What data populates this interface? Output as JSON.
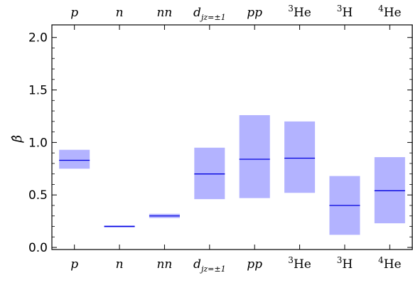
{
  "chart_data": {
    "type": "bar",
    "categories": [
      "p",
      "n",
      "nn",
      "d_jz=±1",
      "pp",
      "³He",
      "³H",
      "⁴He"
    ],
    "category_display": [
      {
        "base": "p",
        "sup": "",
        "sub": "",
        "italic": true
      },
      {
        "base": "n",
        "sup": "",
        "sub": "",
        "italic": true
      },
      {
        "base": "nn",
        "sup": "",
        "sub": "",
        "italic": true
      },
      {
        "base": "d",
        "sup": "",
        "sub": "jz=±1",
        "italic": true
      },
      {
        "base": "pp",
        "sup": "",
        "sub": "",
        "italic": true
      },
      {
        "base": "He",
        "sup": "3",
        "sub": "",
        "italic": false
      },
      {
        "base": "H",
        "sup": "3",
        "sub": "",
        "italic": false
      },
      {
        "base": "He",
        "sup": "4",
        "sub": "",
        "italic": false
      }
    ],
    "series": [
      {
        "central": [
          0.83,
          0.2,
          0.3,
          0.7,
          0.84,
          0.85,
          0.4,
          0.54
        ],
        "low": [
          0.75,
          0.19,
          0.28,
          0.46,
          0.47,
          0.52,
          0.12,
          0.23
        ],
        "high": [
          0.93,
          0.21,
          0.32,
          0.95,
          1.26,
          1.2,
          0.68,
          0.86
        ]
      }
    ],
    "ylabel": "β̂",
    "ylim": [
      -0.02,
      2.12
    ],
    "yticks": [
      0.0,
      0.5,
      1.0,
      1.5,
      2.0
    ],
    "ytick_labels": [
      "0.0",
      "0.5",
      "1.0",
      "1.5",
      "2.0"
    ],
    "band_color": "#b3b3ff",
    "line_color": "#0000dd",
    "grid": false,
    "top_axis_labels": true
  }
}
